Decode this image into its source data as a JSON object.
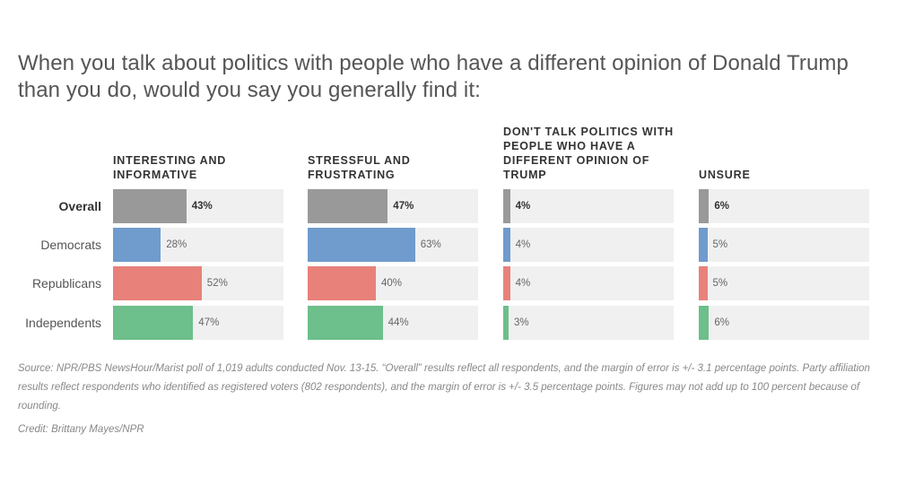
{
  "title": "When you talk about politics with people who have a different opinion of Donald Trump than you do, would you say you generally find it:",
  "chart_data": {
    "type": "bar",
    "title": "When you talk about politics with people who have a different opinion of Donald Trump than you do, would you say you generally find it:",
    "orientation": "horizontal",
    "categories": [
      "Overall",
      "Democrats",
      "Republicans",
      "Independents"
    ],
    "series": [
      {
        "name": "INTERESTING AND INFORMATIVE",
        "values": [
          43,
          28,
          52,
          47
        ],
        "labels": [
          "43%",
          "28%",
          "52%",
          "47%"
        ]
      },
      {
        "name": "STRESSFUL AND FRUSTRATING",
        "values": [
          47,
          63,
          40,
          44
        ],
        "labels": [
          "47%",
          "63%",
          "40%",
          "44%"
        ]
      },
      {
        "name": "DON'T TALK POLITICS WITH PEOPLE WHO HAVE A DIFFERENT OPINION OF TRUMP",
        "values": [
          4,
          4,
          4,
          3
        ],
        "labels": [
          "4%",
          "4%",
          "4%",
          "3%"
        ]
      },
      {
        "name": "UNSURE",
        "values": [
          6,
          5,
          5,
          6
        ],
        "labels": [
          "6%",
          "5%",
          "5%",
          "6%"
        ]
      }
    ],
    "xlim": [
      0,
      100
    ],
    "category_colors": [
      "#999999",
      "#6f9bcd",
      "#e8817a",
      "#6dbf8b"
    ],
    "track_color": "#f0f0f0"
  },
  "note": "Source: NPR/PBS NewsHour/Marist poll of 1,019 adults conducted Nov. 13-15. “Overall” results reflect all respondents, and the margin of error is +/- 3.1 percentage points. Party affiliation results reflect respondents who identified as registered voters (802 respondents), and the margin of error is +/- 3.5 percentage points. Figures may not add up to 100 percent because of rounding.",
  "credit": "Credit: Brittany Mayes/NPR"
}
